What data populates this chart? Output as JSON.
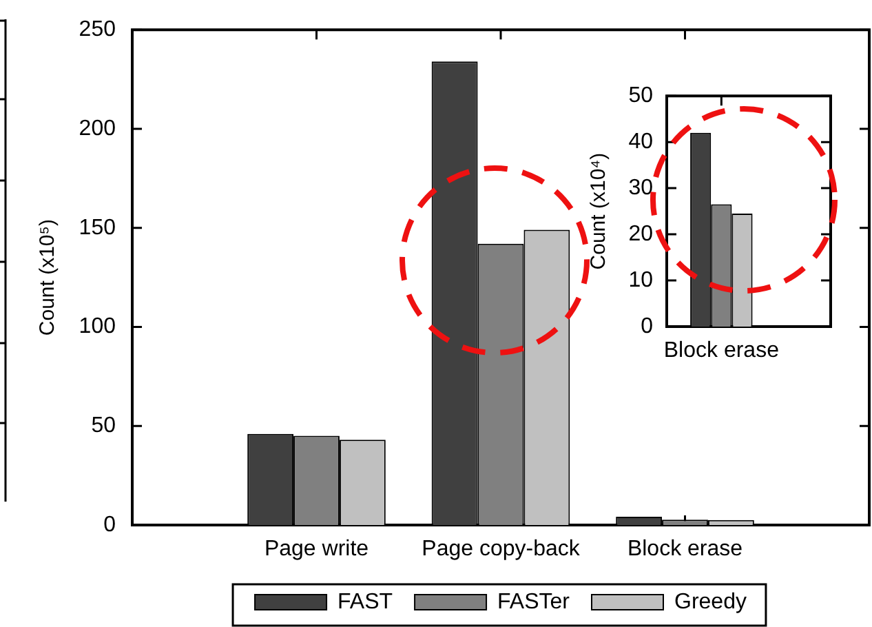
{
  "chart_data": [
    {
      "type": "bar",
      "categories": [
        "Page write",
        "Page copy-back",
        "Block erase"
      ],
      "ylabel": "Count (x10⁵)",
      "ylim": [
        0,
        250
      ],
      "yticks": [
        0,
        50,
        100,
        150,
        200,
        250
      ],
      "series": [
        {
          "name": "FAST",
          "color": "#404040",
          "values": [
            46,
            234,
            4.2
          ]
        },
        {
          "name": "FASTer",
          "color": "#808080",
          "values": [
            45,
            142,
            2.7
          ]
        },
        {
          "name": "Greedy",
          "color": "#c0c0c0",
          "values": [
            43,
            149,
            2.5
          ]
        }
      ],
      "legend": "bottom"
    },
    {
      "type": "bar",
      "categories": [
        "Block erase"
      ],
      "ylabel": "Count (x10⁴)",
      "ylim": [
        0,
        50
      ],
      "yticks": [
        0,
        10,
        20,
        30,
        40,
        50
      ],
      "series": [
        {
          "color": "#404040",
          "values": [
            42
          ]
        },
        {
          "color": "#808080",
          "values": [
            26.5
          ]
        },
        {
          "color": "#c0c0c0",
          "values": [
            24.5
          ]
        }
      ]
    }
  ]
}
